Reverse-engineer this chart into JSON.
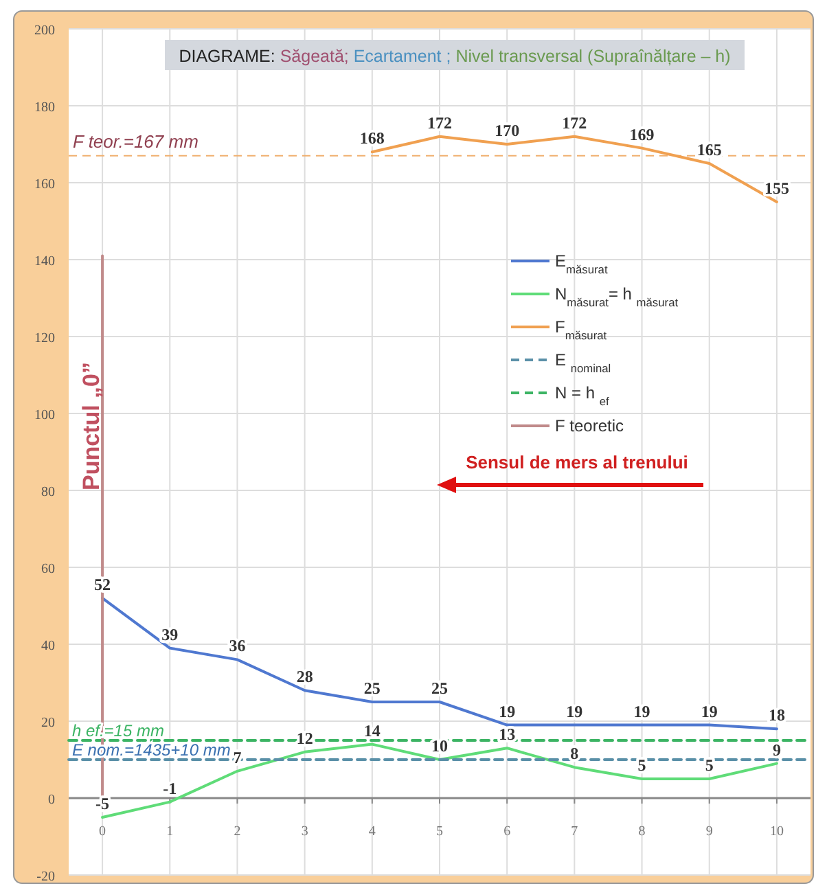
{
  "chart_data": {
    "type": "line",
    "title": "DIAGRAME: Săgeată; Ecartament ; Nivel transversal (Supraînălțare – h)",
    "x": [
      0,
      1,
      2,
      3,
      4,
      5,
      6,
      7,
      8,
      9,
      10
    ],
    "series": [
      {
        "name": "E$_{măsurat}$",
        "color": "#4f78d0",
        "values": [
          52,
          39,
          36,
          28,
          25,
          25,
          19,
          19,
          19,
          19,
          18
        ],
        "data_labels": true
      },
      {
        "name": "N$_{măsurat}$= h $_{măsurat}$",
        "color": "#5fdc78",
        "values": [
          -5,
          -1,
          7,
          12,
          14,
          10,
          13,
          8,
          5,
          5,
          9
        ],
        "data_labels": true
      },
      {
        "name": "F$_{măsurat}$",
        "color": "#f0a050",
        "values": [
          null,
          null,
          null,
          null,
          168,
          172,
          170,
          172,
          169,
          165,
          155
        ],
        "data_labels": true
      },
      {
        "name": "E $_{nominal}$",
        "color": "#5a90a8",
        "x": [
          -0.5,
          10.5
        ],
        "values": [
          10,
          10
        ],
        "line_style": "dashed"
      },
      {
        "name": "N = h $_{ef}$",
        "color": "#3cb464",
        "x": [
          -0.5,
          10.5
        ],
        "values": [
          15,
          15
        ],
        "line_style": "dashed"
      },
      {
        "name": "F teoretic",
        "color": "#c08a8a",
        "x": [
          0,
          0
        ],
        "values": [
          0,
          141
        ]
      }
    ],
    "ref_lines": [
      {
        "axis": "y",
        "value": 167,
        "label": "F teor.=167 mm",
        "color": "#f0b070",
        "line_style": "dashed"
      }
    ],
    "annotations": [
      {
        "text": "h ef.=15 mm",
        "x": -0.45,
        "y": 15
      },
      {
        "text": "E nom.=1435+10 mm",
        "x": -0.45,
        "y": 10
      },
      "Punctul „0”",
      "Sensul de mers al trenului"
    ],
    "xlim": [
      -0.5,
      10.5
    ],
    "xticks": [
      0,
      1,
      2,
      3,
      4,
      5,
      6,
      7,
      8,
      9,
      10
    ],
    "ylim": [
      -20,
      200
    ],
    "yticks": [
      -20,
      0,
      20,
      40,
      60,
      80,
      100,
      120,
      140,
      160,
      180,
      200
    ],
    "grid": true,
    "legend": "right",
    "marker": "none"
  }
}
